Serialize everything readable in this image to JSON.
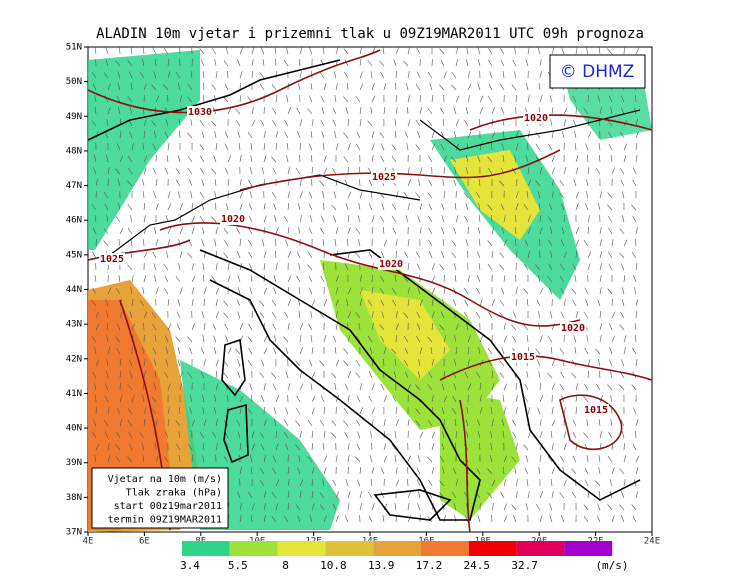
{
  "header": {
    "title": "ALADIN 10m vjetar i prizemni tlak u 09Z19MAR2011 UTC 09h prognoza",
    "logo": "© DHMZ"
  },
  "map": {
    "lat_labels": [
      "51N",
      "50N",
      "49N",
      "48N",
      "47N",
      "46N",
      "45N",
      "44N",
      "43N",
      "42N",
      "41N",
      "40N",
      "39N",
      "38N",
      "37N"
    ],
    "lon_labels": [
      "4E",
      "6E",
      "8E",
      "10E",
      "12E",
      "14E",
      "16E",
      "18E",
      "20E",
      "22E",
      "24E"
    ],
    "isobar_labels": [
      "1030",
      "1020",
      "1025",
      "1020",
      "1025",
      "1020",
      "1020",
      "1015",
      "1015"
    ]
  },
  "info_box": {
    "lines": [
      "Vjetar na 10m (m/s)",
      "Tlak zraka (hPa)",
      "start 00z19mar2011",
      "termin 09Z19MAR2011"
    ]
  },
  "color_bar": {
    "labels": [
      "3.4",
      "5.5",
      "8",
      "10.8",
      "13.9",
      "17.2",
      "24.5",
      "32.7"
    ],
    "unit": "(m/s)",
    "colors": [
      "#2ed48c",
      "#9be23a",
      "#e4e43a",
      "#dfc23a",
      "#e8a23a",
      "#f07a30",
      "#f20000",
      "#e0005c",
      "#a300d0"
    ]
  }
}
